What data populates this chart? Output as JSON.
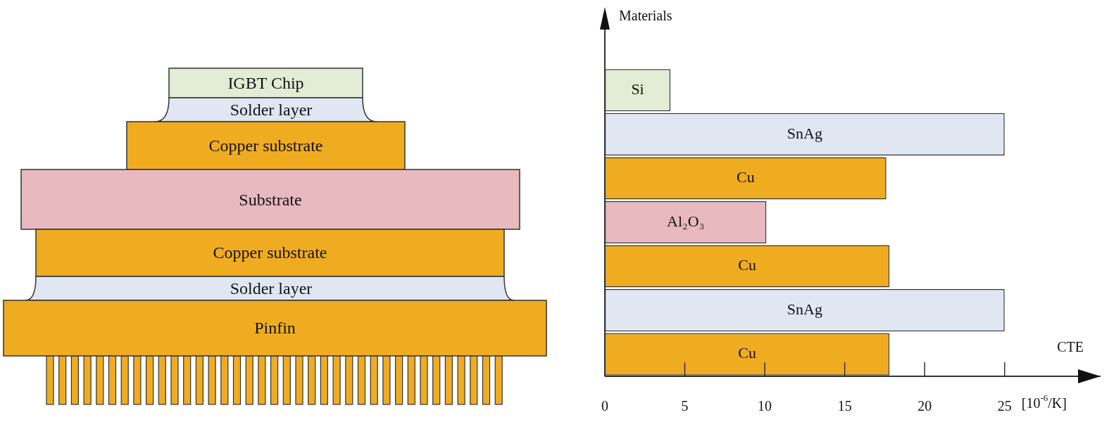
{
  "chart_data": {
    "type": "bar",
    "orientation": "horizontal",
    "categories": [
      "Si",
      "SnAg",
      "Cu",
      "Al₂O₃",
      "Cu",
      "SnAg",
      "Cu"
    ],
    "values": [
      4.1,
      25,
      17.6,
      10.1,
      17.8,
      25,
      17.8
    ],
    "colors": [
      "#e3ecd4",
      "#e0e7f3",
      "#f0ac21",
      "#e8b9be",
      "#f0ac21",
      "#e0e7f3",
      "#f0ac21"
    ],
    "xlim": [
      0,
      31
    ],
    "xticks": [
      0,
      5,
      10,
      15,
      20,
      25
    ],
    "xlabel": "CTE",
    "ylabel": "Materials",
    "annotations": [
      "IGBT Chip",
      "Solder layer",
      "Copper substrate",
      "Substrate",
      "Copper substrate",
      "Solder layer",
      "Pinfin",
      "[10$^{-6}$/K]"
    ]
  }
}
